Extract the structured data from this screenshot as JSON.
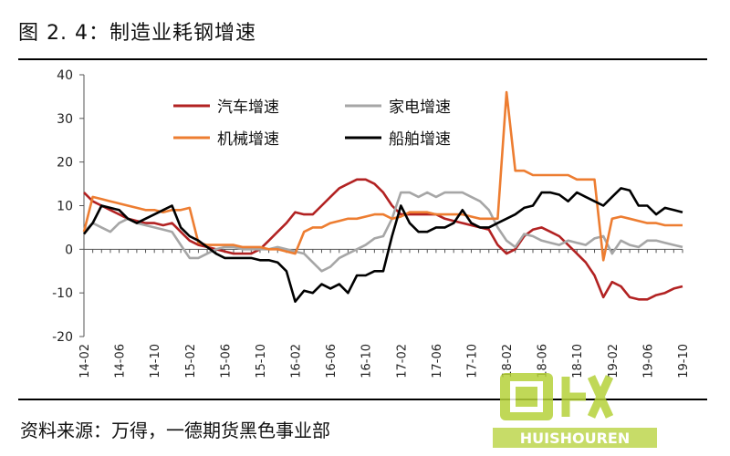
{
  "title": "图 2. 4：制造业耗钢增速",
  "source": "资料来源：万得，一德期货黑色事业部",
  "watermark": {
    "logo": "回收",
    "brand": "HUISHOUREN"
  },
  "colors": {
    "auto": "#b22222",
    "appliance": "#a6a6a6",
    "machinery": "#ed7d31",
    "ship": "#000000",
    "watermark": "#b6d23a"
  },
  "chart_data": {
    "type": "line",
    "title": "",
    "xlabel": "",
    "ylabel": "",
    "ylim": [
      -20,
      40
    ],
    "yticks": [
      -20,
      -10,
      0,
      10,
      20,
      30,
      40
    ],
    "grid": false,
    "legend_position": "top-left",
    "x_tick_labels": [
      "14-02",
      "14-06",
      "14-10",
      "15-02",
      "15-06",
      "15-10",
      "16-02",
      "16-06",
      "16-10",
      "17-02",
      "17-06",
      "17-10",
      "18-02",
      "18-06",
      "18-10",
      "19-02",
      "19-06",
      "19-10"
    ],
    "x": [
      "14-02",
      "14-03",
      "14-04",
      "14-05",
      "14-06",
      "14-07",
      "14-08",
      "14-09",
      "14-10",
      "14-11",
      "14-12",
      "15-01",
      "15-02",
      "15-03",
      "15-04",
      "15-05",
      "15-06",
      "15-07",
      "15-08",
      "15-09",
      "15-10",
      "15-11",
      "15-12",
      "16-01",
      "16-02",
      "16-03",
      "16-04",
      "16-05",
      "16-06",
      "16-07",
      "16-08",
      "16-09",
      "16-10",
      "16-11",
      "16-12",
      "17-01",
      "17-02",
      "17-03",
      "17-04",
      "17-05",
      "17-06",
      "17-07",
      "17-08",
      "17-09",
      "17-10",
      "17-11",
      "17-12",
      "18-01",
      "18-02",
      "18-03",
      "18-04",
      "18-05",
      "18-06",
      "18-07",
      "18-08",
      "18-09",
      "18-10",
      "18-11",
      "18-12",
      "19-01",
      "19-02",
      "19-03",
      "19-04",
      "19-05",
      "19-06",
      "19-07",
      "19-08",
      "19-09",
      "19-10"
    ],
    "series": [
      {
        "name": "汽车增速",
        "color": "#b22222",
        "values": [
          13,
          11,
          10,
          9,
          8,
          7,
          6.5,
          6,
          6,
          5.5,
          6,
          4,
          2,
          1,
          0.5,
          0,
          -0.5,
          -1,
          -1,
          -1,
          0,
          2,
          4,
          6,
          8.5,
          8,
          8,
          10,
          12,
          14,
          15,
          16,
          16,
          15,
          13,
          10,
          8,
          8,
          8,
          8,
          8,
          7,
          6.5,
          6,
          5.5,
          5,
          4.5,
          1,
          -1,
          0,
          3,
          4.5,
          5,
          4,
          3,
          1,
          -1,
          -3,
          -6,
          -11,
          -7.5,
          -8.5,
          -11,
          -11.5,
          -11.5,
          -10.5,
          -10,
          -9,
          -8.5
        ]
      },
      {
        "name": "家电增速",
        "color": "#a6a6a6",
        "values": [
          4,
          6,
          5,
          4,
          6,
          7,
          6,
          5.5,
          5,
          4.5,
          4,
          1,
          -2,
          -2,
          -1,
          0,
          0.5,
          0.5,
          0,
          0,
          0,
          0,
          0.5,
          0,
          -0.5,
          -1,
          -3,
          -5,
          -4,
          -2,
          -1,
          0,
          1,
          2.5,
          3,
          7,
          13,
          13,
          12,
          13,
          12,
          13,
          13,
          13,
          12,
          11,
          9,
          5,
          2,
          0.5,
          3.5,
          3,
          2,
          1.5,
          1,
          2,
          1.5,
          1,
          2.5,
          3,
          -1,
          2,
          1,
          0.5,
          2,
          2,
          1.5,
          1,
          0.5
        ]
      },
      {
        "name": "机械增速",
        "color": "#ed7d31",
        "values": [
          4,
          12,
          11.5,
          11,
          10.5,
          10,
          9.5,
          9,
          9,
          8.5,
          9,
          9,
          9.5,
          1.5,
          1,
          1,
          1,
          1,
          0.5,
          0.5,
          0.5,
          0,
          0,
          -0.5,
          -1,
          4,
          5,
          5,
          6,
          6.5,
          7,
          7,
          7.5,
          8,
          8,
          7,
          7.5,
          8.5,
          8.5,
          8.5,
          8,
          8,
          8,
          8,
          7.5,
          7,
          7,
          7,
          36,
          18,
          18,
          17,
          17,
          17,
          17,
          17,
          16,
          16,
          16,
          -2.5,
          7,
          7.5,
          7,
          6.5,
          6,
          6,
          5.5,
          5.5,
          5.5
        ]
      },
      {
        "name": "船舶增速",
        "color": "#000000",
        "values": [
          3.5,
          6,
          10,
          9.5,
          9,
          7,
          6,
          7,
          8,
          9,
          10,
          5,
          3,
          2,
          0.5,
          -1,
          -2,
          -2,
          -2,
          -2,
          -2.5,
          -2.5,
          -3,
          -5,
          -12,
          -9.5,
          -10,
          -8,
          -9,
          -8,
          -10,
          -6,
          -6,
          -5,
          -5,
          3,
          10,
          6,
          4,
          4,
          5,
          5,
          6,
          9,
          6,
          5,
          5,
          6,
          7,
          8,
          9.5,
          10,
          13,
          13,
          12.5,
          11,
          13,
          12,
          11,
          10,
          12,
          14,
          13.5,
          10,
          10,
          8,
          9.5,
          9,
          8.5
        ]
      }
    ]
  }
}
